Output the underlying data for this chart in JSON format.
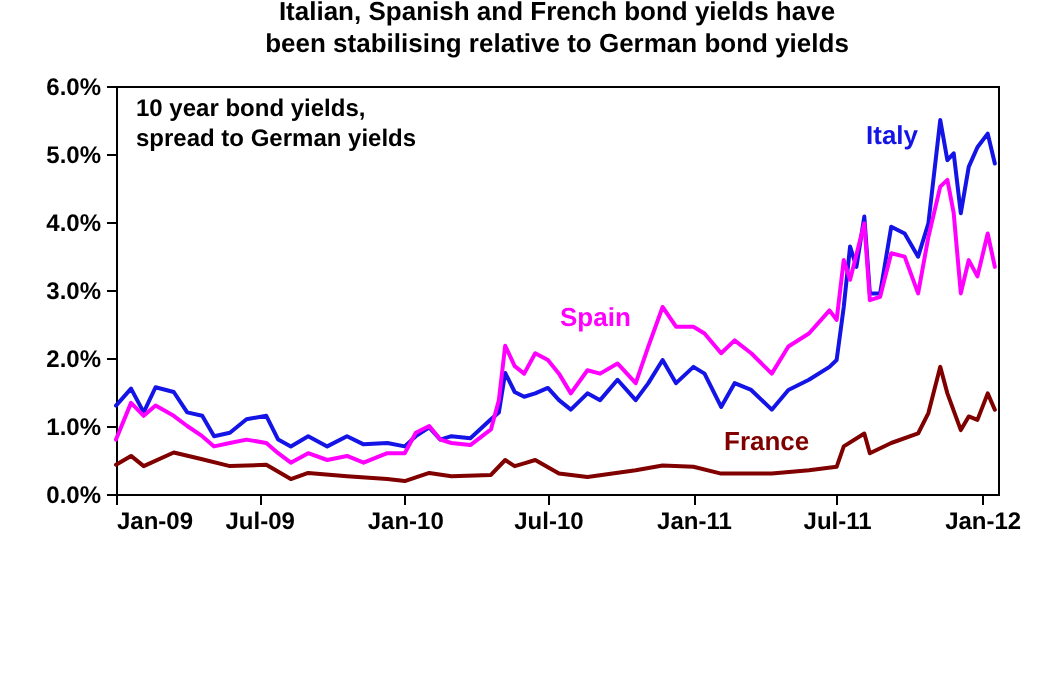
{
  "chart_data": {
    "type": "line",
    "title": "Italian, Spanish and French bond yields have\nbeen stabilising relative to German bond yields",
    "annotations": [
      "10 year bond yields,\nspread to German yields"
    ],
    "xlim": [
      "2009-01-01",
      "2012-01-21"
    ],
    "xticks": [
      {
        "value": "2009-01-01",
        "label": "Jan-09"
      },
      {
        "value": "2009-07-01",
        "label": "Jul-09"
      },
      {
        "value": "2010-01-01",
        "label": "Jan-10"
      },
      {
        "value": "2010-07-01",
        "label": "Jul-10"
      },
      {
        "value": "2011-01-01",
        "label": "Jan-11"
      },
      {
        "value": "2011-07-01",
        "label": "Jul-11"
      },
      {
        "value": "2012-01-01",
        "label": "Jan-12"
      }
    ],
    "ylim": [
      0,
      6
    ],
    "yticks": [
      {
        "value": 0,
        "label": "0.0%"
      },
      {
        "value": 1,
        "label": "1.0%"
      },
      {
        "value": 2,
        "label": "2.0%"
      },
      {
        "value": 3,
        "label": "3.0%"
      },
      {
        "value": 4,
        "label": "4.0%"
      },
      {
        "value": 5,
        "label": "5.0%"
      },
      {
        "value": 6,
        "label": "6.0%"
      }
    ],
    "grid": false,
    "legend": false,
    "marker": "none",
    "line_style": "solid",
    "series": [
      {
        "name": "Italy",
        "color": "#1414e6",
        "x": [
          "2009-01-01",
          "2009-01-20",
          "2009-02-05",
          "2009-02-20",
          "2009-03-15",
          "2009-04-01",
          "2009-04-20",
          "2009-05-05",
          "2009-05-25",
          "2009-06-15",
          "2009-07-10",
          "2009-07-25",
          "2009-08-10",
          "2009-09-01",
          "2009-09-25",
          "2009-10-20",
          "2009-11-10",
          "2009-12-10",
          "2010-01-01",
          "2010-01-15",
          "2010-02-01",
          "2010-02-15",
          "2010-03-01",
          "2010-03-25",
          "2010-04-20",
          "2010-04-30",
          "2010-05-08",
          "2010-05-20",
          "2010-06-01",
          "2010-06-15",
          "2010-07-01",
          "2010-07-15",
          "2010-07-30",
          "2010-08-20",
          "2010-09-05",
          "2010-09-27",
          "2010-10-20",
          "2010-11-05",
          "2010-11-23",
          "2010-12-10",
          "2011-01-01",
          "2011-01-15",
          "2011-02-05",
          "2011-02-22",
          "2011-03-15",
          "2011-04-10",
          "2011-05-01",
          "2011-05-27",
          "2011-06-22",
          "2011-07-01",
          "2011-07-10",
          "2011-07-18",
          "2011-07-26",
          "2011-08-05",
          "2011-08-12",
          "2011-08-25",
          "2011-09-08",
          "2011-09-25",
          "2011-10-12",
          "2011-10-25",
          "2011-11-09",
          "2011-11-18",
          "2011-11-26",
          "2011-12-05",
          "2011-12-15",
          "2011-12-26",
          "2012-01-08",
          "2012-01-17"
        ],
        "values": [
          1.3,
          1.55,
          1.2,
          1.57,
          1.5,
          1.2,
          1.15,
          0.85,
          0.9,
          1.1,
          1.15,
          0.8,
          0.7,
          0.85,
          0.7,
          0.85,
          0.73,
          0.75,
          0.7,
          0.85,
          0.98,
          0.8,
          0.85,
          0.82,
          1.1,
          1.2,
          1.78,
          1.5,
          1.43,
          1.48,
          1.56,
          1.38,
          1.24,
          1.48,
          1.38,
          1.68,
          1.38,
          1.63,
          1.97,
          1.63,
          1.87,
          1.77,
          1.28,
          1.63,
          1.53,
          1.24,
          1.53,
          1.68,
          1.87,
          1.97,
          2.75,
          3.64,
          3.34,
          4.08,
          2.95,
          2.95,
          3.93,
          3.83,
          3.49,
          3.98,
          5.5,
          4.91,
          5.01,
          4.13,
          4.81,
          5.1,
          5.3,
          4.86
        ]
      },
      {
        "name": "Spain",
        "color": "#ff00ff",
        "x": [
          "2009-01-01",
          "2009-01-20",
          "2009-02-05",
          "2009-02-20",
          "2009-03-15",
          "2009-04-01",
          "2009-04-20",
          "2009-05-05",
          "2009-05-25",
          "2009-06-15",
          "2009-07-10",
          "2009-07-25",
          "2009-08-10",
          "2009-09-01",
          "2009-09-25",
          "2009-10-20",
          "2009-11-10",
          "2009-12-10",
          "2010-01-01",
          "2010-01-15",
          "2010-02-01",
          "2010-02-15",
          "2010-03-01",
          "2010-03-25",
          "2010-04-20",
          "2010-04-30",
          "2010-05-08",
          "2010-05-20",
          "2010-06-01",
          "2010-06-15",
          "2010-07-01",
          "2010-07-15",
          "2010-07-30",
          "2010-08-20",
          "2010-09-05",
          "2010-09-27",
          "2010-10-20",
          "2010-11-05",
          "2010-11-23",
          "2010-12-10",
          "2011-01-01",
          "2011-01-15",
          "2011-02-05",
          "2011-02-22",
          "2011-03-15",
          "2011-04-10",
          "2011-05-01",
          "2011-05-27",
          "2011-06-22",
          "2011-07-01",
          "2011-07-10",
          "2011-07-18",
          "2011-08-05",
          "2011-08-12",
          "2011-08-25",
          "2011-09-08",
          "2011-09-25",
          "2011-10-12",
          "2011-10-25",
          "2011-11-09",
          "2011-11-18",
          "2011-11-26",
          "2011-12-05",
          "2011-12-15",
          "2011-12-26",
          "2012-01-08",
          "2012-01-17"
        ],
        "values": [
          0.8,
          1.34,
          1.15,
          1.3,
          1.15,
          1.0,
          0.85,
          0.7,
          0.75,
          0.8,
          0.75,
          0.6,
          0.46,
          0.6,
          0.5,
          0.56,
          0.46,
          0.6,
          0.6,
          0.9,
          1.0,
          0.8,
          0.75,
          0.72,
          0.95,
          1.38,
          2.18,
          1.88,
          1.77,
          2.07,
          1.97,
          1.77,
          1.48,
          1.82,
          1.77,
          1.92,
          1.63,
          2.17,
          2.75,
          2.46,
          2.46,
          2.36,
          2.07,
          2.26,
          2.07,
          1.77,
          2.17,
          2.36,
          2.7,
          2.56,
          3.44,
          3.15,
          3.98,
          2.85,
          2.9,
          3.54,
          3.49,
          2.95,
          3.78,
          4.52,
          4.62,
          4.13,
          2.95,
          3.44,
          3.2,
          3.83,
          3.34
        ]
      },
      {
        "name": "France",
        "color": "#800000",
        "x": [
          "2009-01-01",
          "2009-01-20",
          "2009-02-05",
          "2009-03-15",
          "2009-04-20",
          "2009-05-25",
          "2009-07-10",
          "2009-08-10",
          "2009-09-01",
          "2009-10-20",
          "2009-12-10",
          "2010-01-01",
          "2010-02-01",
          "2010-03-01",
          "2010-04-20",
          "2010-05-08",
          "2010-05-20",
          "2010-06-01",
          "2010-06-15",
          "2010-07-15",
          "2010-08-20",
          "2010-10-20",
          "2010-11-23",
          "2011-01-01",
          "2011-02-05",
          "2011-04-10",
          "2011-05-27",
          "2011-07-01",
          "2011-07-10",
          "2011-08-05",
          "2011-08-12",
          "2011-09-08",
          "2011-10-12",
          "2011-10-25",
          "2011-11-09",
          "2011-11-18",
          "2011-12-05",
          "2011-12-15",
          "2011-12-26",
          "2012-01-08",
          "2012-01-17"
        ],
        "values": [
          0.43,
          0.56,
          0.41,
          0.61,
          0.51,
          0.41,
          0.43,
          0.22,
          0.31,
          0.26,
          0.22,
          0.19,
          0.31,
          0.26,
          0.28,
          0.5,
          0.41,
          0.45,
          0.5,
          0.3,
          0.25,
          0.35,
          0.42,
          0.4,
          0.3,
          0.3,
          0.35,
          0.4,
          0.7,
          0.89,
          0.6,
          0.75,
          0.89,
          1.19,
          1.87,
          1.48,
          0.94,
          1.14,
          1.09,
          1.48,
          1.24
        ]
      }
    ]
  }
}
